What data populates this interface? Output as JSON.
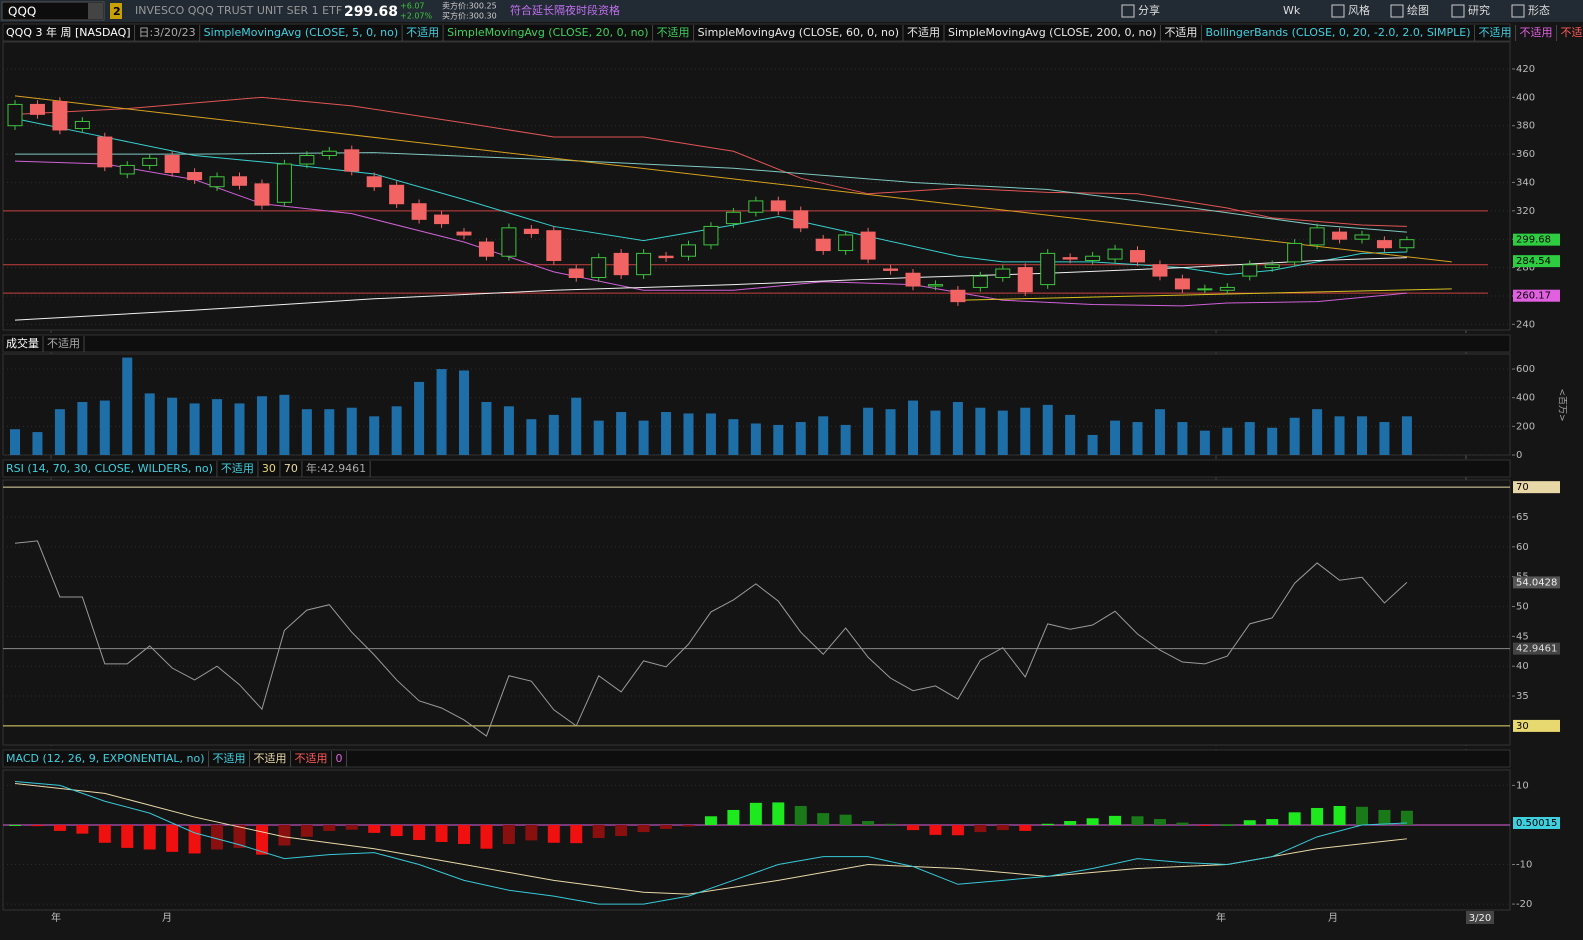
{
  "toolbar": {
    "symbol": "QQQ",
    "link": "2",
    "description": "INVESCO QQQ TRUST UNIT SER 1 ETF",
    "last": "299.68",
    "change": "+6.07",
    "change_pct": "+2.07%",
    "ask": "卖方价:300.25",
    "bid": "买方价:300.30",
    "extended": "符合延长隔夜时段资格",
    "buttons": [
      "分享",
      "风格",
      "绘图",
      "研究",
      "形态"
    ],
    "aggregation": "Wk"
  },
  "price_pane": {
    "title": "QQQ 3 年 周 [NASDAQ]",
    "date": "日:3/20/23",
    "studies": [
      {
        "label": "SimpleMovingAvg (CLOSE, 5, 0, no)",
        "color": "#3fd0e0",
        "status": "不适用",
        "status_color": "#3fd0e0"
      },
      {
        "label": "SimpleMovingAvg (CLOSE, 20, 0, no)",
        "color": "#3fcf5f",
        "status": "不适用",
        "status_color": "#3fcf5f"
      },
      {
        "label": "SimpleMovingAvg (CLOSE, 60, 0, no)",
        "color": "#e8e8e8",
        "status": "不适用",
        "status_color": "#e8e8e8"
      },
      {
        "label": "SimpleMovingAvg (CLOSE, 200, 0, no)",
        "color": "#e8e8e8",
        "status": "不适用",
        "status_color": "#e8e8e8"
      },
      {
        "label": "BollingerBands (CLOSE, 0, 20, -2.0, 2.0, SIMPLE)",
        "color": "#3fd0e0",
        "status": "不适用",
        "status_color": "#3fd0e0"
      },
      {
        "label": "不适用",
        "color": "#e060e0"
      },
      {
        "label": "不适用",
        "color": "#ff5a5a"
      }
    ],
    "ylim": [
      236,
      439
    ],
    "yticks": [
      240,
      260,
      280,
      300,
      320,
      340,
      360,
      380,
      400,
      420
    ],
    "up_color": "#3dc43d",
    "down_color": "#f26464",
    "open": [
      380,
      395,
      397,
      378,
      372,
      346,
      352,
      359,
      347,
      337,
      344,
      339,
      326,
      353,
      359,
      363,
      344,
      338,
      325,
      317,
      305,
      298,
      288,
      307,
      306,
      279,
      273,
      290,
      275,
      288,
      288,
      296,
      311,
      319,
      327,
      320,
      300,
      292,
      305,
      279,
      276,
      267,
      264,
      266,
      273,
      280,
      268,
      287,
      285,
      286,
      292,
      282,
      272,
      265,
      264,
      274,
      280,
      284,
      296,
      305,
      300,
      299,
      294
    ],
    "high": [
      398,
      398,
      400,
      386,
      375,
      355,
      360,
      362,
      350,
      347,
      347,
      342,
      356,
      362,
      365,
      366,
      347,
      341,
      328,
      320,
      308,
      301,
      311,
      310,
      309,
      282,
      290,
      293,
      293,
      291,
      299,
      312,
      322,
      330,
      330,
      323,
      303,
      306,
      308,
      282,
      279,
      271,
      267,
      277,
      282,
      283,
      293,
      290,
      291,
      296,
      295,
      285,
      275,
      268,
      269,
      285,
      285,
      300,
      311,
      308,
      306,
      302,
      302
    ],
    "low": [
      377,
      385,
      374,
      375,
      348,
      343,
      349,
      344,
      339,
      334,
      335,
      321,
      323,
      350,
      356,
      345,
      334,
      322,
      311,
      308,
      300,
      285,
      285,
      301,
      282,
      270,
      270,
      272,
      272,
      284,
      285,
      293,
      308,
      316,
      317,
      305,
      289,
      289,
      283,
      275,
      264,
      264,
      253,
      263,
      270,
      260,
      265,
      283,
      282,
      283,
      281,
      271,
      262,
      262,
      261,
      271,
      277,
      281,
      293,
      297,
      297,
      291,
      291
    ],
    "close": [
      395,
      388,
      377,
      383,
      351,
      352,
      357,
      347,
      342,
      344,
      338,
      324,
      353,
      359,
      362,
      348,
      337,
      325,
      314,
      311,
      303,
      288,
      308,
      304,
      285,
      273,
      287,
      275,
      290,
      287,
      296,
      309,
      319,
      327,
      320,
      308,
      292,
      303,
      286,
      278,
      267,
      268,
      256,
      274,
      279,
      263,
      290,
      286,
      288,
      293,
      284,
      274,
      265,
      265,
      266,
      282,
      282,
      297,
      308,
      300,
      303,
      294,
      299.68
    ],
    "lines": [
      {
        "color": "#e05555",
        "x": [
          0,
          5,
          11,
          15,
          20,
          24,
          28,
          32,
          35,
          38,
          42,
          46,
          50,
          54,
          56,
          60,
          62
        ],
        "values": [
          388,
          392,
          400,
          394,
          382,
          372,
          372,
          362,
          343,
          332,
          336,
          333,
          332,
          322,
          315,
          310,
          309
        ]
      },
      {
        "color": "#d060d8",
        "x": [
          0,
          4,
          8,
          11,
          15,
          20,
          24,
          28,
          32,
          36,
          40,
          44,
          48,
          52,
          54,
          58,
          62
        ],
        "values": [
          355,
          353,
          342,
          325,
          318,
          298,
          277,
          264,
          264,
          270,
          268,
          257,
          254,
          253,
          255,
          256,
          262
        ]
      },
      {
        "color": "#38d0d0",
        "x": [
          0,
          4,
          8,
          12,
          16,
          20,
          24,
          28,
          32,
          34,
          38,
          42,
          44,
          48,
          52,
          54,
          56,
          60,
          62
        ],
        "values": [
          385,
          372,
          359,
          353,
          346,
          328,
          309,
          299,
          310,
          316,
          302,
          288,
          284,
          284,
          280,
          275,
          278,
          290,
          291
        ]
      },
      {
        "color": "#7fc8c0",
        "x": [
          0,
          8,
          16,
          24,
          32,
          40,
          46,
          52,
          58,
          62
        ],
        "values": [
          360,
          360,
          361,
          356,
          350,
          340,
          335,
          323,
          310,
          305
        ]
      },
      {
        "color": "#f0f0f0",
        "x": [
          0,
          8,
          16,
          24,
          32,
          40,
          46,
          52,
          58,
          62
        ],
        "values": [
          243,
          250,
          258,
          264,
          268,
          273,
          276,
          280,
          285,
          287
        ]
      },
      {
        "color": "#d8a020",
        "x": [
          0,
          64
        ],
        "values": [
          401,
          284
        ]
      },
      {
        "color": "#d8c020",
        "x": [
          42,
          64
        ],
        "values": [
          257,
          265
        ]
      }
    ],
    "levels": [
      {
        "value": 320,
        "color": "#c84040"
      },
      {
        "value": 282,
        "color": "#c84040"
      },
      {
        "value": 262,
        "color": "#c84040"
      }
    ],
    "price_tags": [
      {
        "value": 299.68,
        "color": "#2ecc40"
      },
      {
        "value": 284.54,
        "color": "#2ecc40"
      },
      {
        "value": 260.17,
        "color": "#e060e0"
      }
    ]
  },
  "volume_pane": {
    "title": "成交量",
    "status": "不适用",
    "unit": "<百万>",
    "color": "#1e6fa8",
    "ylim": [
      0,
      705
    ],
    "yticks": [
      0,
      200,
      400,
      600
    ],
    "values": [
      180,
      160,
      320,
      370,
      380,
      680,
      430,
      400,
      360,
      390,
      360,
      410,
      420,
      320,
      320,
      330,
      270,
      340,
      510,
      600,
      590,
      370,
      340,
      250,
      280,
      400,
      240,
      300,
      240,
      300,
      290,
      290,
      250,
      220,
      210,
      230,
      270,
      210,
      330,
      320,
      380,
      310,
      370,
      330,
      310,
      330,
      350,
      280,
      140,
      240,
      230,
      320,
      230,
      170,
      190,
      230,
      190,
      260,
      320,
      270,
      270,
      230,
      270
    ]
  },
  "rsi_pane": {
    "title": "RSI (14, 70, 30, CLOSE, WILDERS, no)",
    "status": "不适用",
    "oversold": 30,
    "overbought": 70,
    "average_label": "年:42.9461",
    "average": 42.9461,
    "color": "#9a9a9a",
    "ylim": [
      26.8,
      71.2
    ],
    "yticks": [
      35,
      40,
      45,
      50,
      55,
      60,
      65
    ],
    "values": [
      60.6,
      61,
      51.6,
      51.6,
      40.4,
      40.4,
      43.4,
      39.7,
      37.7,
      40,
      36.9,
      32.8,
      46,
      49.4,
      50.3,
      45.7,
      41.9,
      37.7,
      34.2,
      33,
      31,
      28.3,
      38.4,
      37.5,
      32.7,
      30,
      38.4,
      35.7,
      40.9,
      39.9,
      43.7,
      49.1,
      51.1,
      53.8,
      50.9,
      45.7,
      42,
      46.4,
      41.5,
      38,
      35.9,
      36.7,
      34.5,
      41,
      43.1,
      38.2,
      47.1,
      46.2,
      46.9,
      49.2,
      45.4,
      42.7,
      40.7,
      40.4,
      41.7,
      47.1,
      48.1,
      53.9,
      57.3,
      54.4,
      54.9,
      50.6,
      54.0428
    ]
  },
  "macd_pane": {
    "title": "MACD (12, 26, 9, EXPONENTIAL, no)",
    "tags": [
      {
        "label": "不适用",
        "color": "#3fd0e0"
      },
      {
        "label": "不适用",
        "color": "#e8d8a8"
      },
      {
        "label": "不适用",
        "color": "#ff5a5a"
      },
      {
        "label": "0",
        "color": "#e060e0"
      }
    ],
    "ylim": [
      -21.5,
      13.9
    ],
    "yticks": [
      10,
      -10,
      -20
    ],
    "last": 0.50015,
    "histogram": [
      0,
      -0.3,
      -1.5,
      -2.2,
      -4.5,
      -5.8,
      -6.2,
      -6.8,
      -7.2,
      -6.2,
      -5.8,
      -7.5,
      -5.2,
      -3,
      -1.5,
      -1.2,
      -2,
      -2.8,
      -3.8,
      -4.3,
      -4.8,
      -6,
      -4.8,
      -3.9,
      -4.5,
      -4.6,
      -3.3,
      -2.8,
      -1.8,
      -1,
      -0.4,
      2.2,
      3.8,
      5.6,
      5.7,
      4.8,
      3,
      2.6,
      1,
      0.3,
      -1.3,
      -2.5,
      -2.6,
      -1.8,
      -1.3,
      -1.5,
      0.3,
      1,
      1.7,
      2.3,
      2.2,
      1.5,
      0.6,
      -0.2,
      0.1,
      1.2,
      1.5,
      3.2,
      4.3,
      4.8,
      4.6,
      3.8,
      3.6
    ],
    "macd": {
      "color": "#38c8d8",
      "x": [
        0,
        2,
        4,
        6,
        8,
        10,
        12,
        14,
        16,
        18,
        20,
        22,
        24,
        26,
        28,
        30,
        32,
        34,
        36,
        38,
        40,
        42,
        44,
        46,
        48,
        50,
        52,
        54,
        56,
        58,
        60,
        62
      ],
      "values": [
        11,
        10,
        6,
        3,
        -2,
        -5,
        -8.5,
        -7.5,
        -7,
        -10,
        -14,
        -16.5,
        -18,
        -20,
        -20,
        -18,
        -14,
        -10,
        -8,
        -8,
        -10.5,
        -15,
        -14,
        -13,
        -11,
        -8.5,
        -9.5,
        -10,
        -8,
        -3,
        0,
        0.5
      ]
    },
    "signal": {
      "color": "#e8d8a8",
      "x": [
        0,
        4,
        8,
        12,
        16,
        20,
        24,
        28,
        30,
        34,
        38,
        42,
        46,
        50,
        54,
        58,
        62
      ],
      "values": [
        10.5,
        8,
        2,
        -3,
        -6,
        -10,
        -14,
        -17,
        -17.5,
        -14,
        -10,
        -11,
        -13,
        -11,
        -10,
        -6,
        -3.5
      ]
    }
  },
  "x_axis": {
    "labels": [
      "年",
      "月",
      "年",
      "月"
    ],
    "current": "3/20"
  }
}
